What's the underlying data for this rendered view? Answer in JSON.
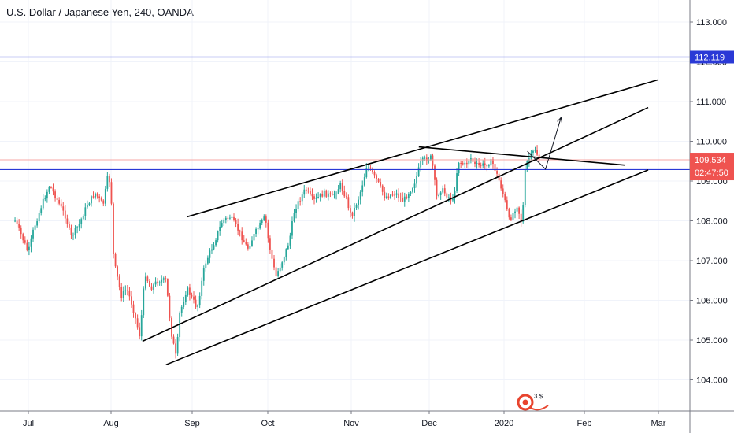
{
  "header": {
    "title": "U.S. Dollar / Japanese Yen, 240, OANDA"
  },
  "colors": {
    "up": "#26a69a",
    "down": "#ef5350",
    "level_line": "#2a39d6",
    "price_line": "#f7a7a4",
    "trendline": "#000000",
    "axis_text": "#131722"
  },
  "logo": {
    "text": "3 $"
  },
  "chart_data": {
    "type": "candlestick",
    "title": "U.S. Dollar / Japanese Yen, 240, OANDA",
    "ylim": [
      103.3,
      113.5
    ],
    "y_ticks": [
      "113.000",
      "112.000",
      "111.000",
      "110.000",
      "109.000",
      "108.000",
      "107.000",
      "106.000",
      "105.000",
      "104.000"
    ],
    "x_ticks": [
      "Jul",
      "Aug",
      "Sep",
      "Oct",
      "Nov",
      "Dec",
      "2020",
      "Feb",
      "Mar"
    ],
    "price_path": [
      [
        "2019-06-26",
        108.0
      ],
      [
        "2019-06-28",
        107.7
      ],
      [
        "2019-07-01",
        107.2
      ],
      [
        "2019-07-03",
        107.8
      ],
      [
        "2019-07-06",
        108.4
      ],
      [
        "2019-07-09",
        108.9
      ],
      [
        "2019-07-12",
        108.5
      ],
      [
        "2019-07-15",
        108.1
      ],
      [
        "2019-07-17",
        107.6
      ],
      [
        "2019-07-20",
        107.9
      ],
      [
        "2019-07-23",
        108.4
      ],
      [
        "2019-07-26",
        108.7
      ],
      [
        "2019-07-29",
        108.4
      ],
      [
        "2019-07-31",
        109.2
      ],
      [
        "2019-08-01",
        108.7
      ],
      [
        "2019-08-02",
        107.0
      ],
      [
        "2019-08-05",
        106.1
      ],
      [
        "2019-08-07",
        106.3
      ],
      [
        "2019-08-09",
        105.9
      ],
      [
        "2019-08-12",
        105.1
      ],
      [
        "2019-08-14",
        106.7
      ],
      [
        "2019-08-16",
        106.3
      ],
      [
        "2019-08-19",
        106.5
      ],
      [
        "2019-08-22",
        106.5
      ],
      [
        "2019-08-24",
        105.2
      ],
      [
        "2019-08-26",
        104.5
      ],
      [
        "2019-08-27",
        105.6
      ],
      [
        "2019-08-30",
        106.3
      ],
      [
        "2019-09-03",
        105.8
      ],
      [
        "2019-09-06",
        106.9
      ],
      [
        "2019-09-10",
        107.5
      ],
      [
        "2019-09-13",
        108.0
      ],
      [
        "2019-09-16",
        108.1
      ],
      [
        "2019-09-19",
        107.8
      ],
      [
        "2019-09-23",
        107.3
      ],
      [
        "2019-09-26",
        107.7
      ],
      [
        "2019-09-30",
        108.1
      ],
      [
        "2019-10-01",
        107.6
      ],
      [
        "2019-10-03",
        106.9
      ],
      [
        "2019-10-04",
        106.6
      ],
      [
        "2019-10-07",
        107.1
      ],
      [
        "2019-10-09",
        107.5
      ],
      [
        "2019-10-11",
        108.3
      ],
      [
        "2019-10-15",
        108.8
      ],
      [
        "2019-10-18",
        108.5
      ],
      [
        "2019-10-22",
        108.7
      ],
      [
        "2019-10-25",
        108.6
      ],
      [
        "2019-10-28",
        108.9
      ],
      [
        "2019-10-30",
        108.6
      ],
      [
        "2019-11-01",
        108.1
      ],
      [
        "2019-11-04",
        108.6
      ],
      [
        "2019-11-06",
        109.1
      ],
      [
        "2019-11-07",
        109.4
      ],
      [
        "2019-11-11",
        109.0
      ],
      [
        "2019-11-14",
        108.6
      ],
      [
        "2019-11-18",
        108.7
      ],
      [
        "2019-11-21",
        108.5
      ],
      [
        "2019-11-25",
        108.9
      ],
      [
        "2019-11-28",
        109.5
      ],
      [
        "2019-12-02",
        109.6
      ],
      [
        "2019-12-04",
        108.6
      ],
      [
        "2019-12-06",
        108.8
      ],
      [
        "2019-12-09",
        108.6
      ],
      [
        "2019-12-11",
        108.5
      ],
      [
        "2019-12-13",
        109.5
      ],
      [
        "2019-12-16",
        109.4
      ],
      [
        "2019-12-18",
        109.6
      ],
      [
        "2019-12-20",
        109.4
      ],
      [
        "2019-12-24",
        109.4
      ],
      [
        "2019-12-27",
        109.5
      ],
      [
        "2019-12-30",
        109.0
      ],
      [
        "2020-01-01",
        108.6
      ],
      [
        "2020-01-03",
        108.0
      ],
      [
        "2020-01-06",
        108.4
      ],
      [
        "2020-01-08",
        107.9
      ],
      [
        "2020-01-09",
        109.2
      ],
      [
        "2020-01-10",
        109.5
      ],
      [
        "2020-01-13",
        109.8
      ],
      [
        "2020-01-15",
        109.5
      ]
    ],
    "horizontal_levels": [
      {
        "price": 112.119,
        "label": "112.119",
        "color": "#2a39d6"
      },
      {
        "price": 109.288,
        "label": "109.288",
        "color": "#2a39d6"
      }
    ],
    "price_line": {
      "price": 109.534,
      "label": "109.534",
      "countdown": "02:47:50"
    },
    "trendlines": [
      {
        "from": [
          "2019-08-13",
          104.97
        ],
        "to": [
          "2020-02-26",
          110.85
        ]
      },
      {
        "from": [
          "2019-08-22",
          104.38
        ],
        "to": [
          "2020-02-26",
          109.28
        ]
      },
      {
        "from": [
          "2019-08-30",
          108.1
        ],
        "to": [
          "2020-03-01",
          111.55
        ]
      },
      {
        "from": [
          "2019-11-27",
          109.86
        ],
        "to": [
          "2020-02-17",
          109.4
        ]
      }
    ],
    "projection_path": [
      [
        "2020-01-10",
        109.75
      ],
      [
        "2020-01-17",
        109.3
      ],
      [
        "2020-01-23",
        110.6
      ]
    ]
  }
}
